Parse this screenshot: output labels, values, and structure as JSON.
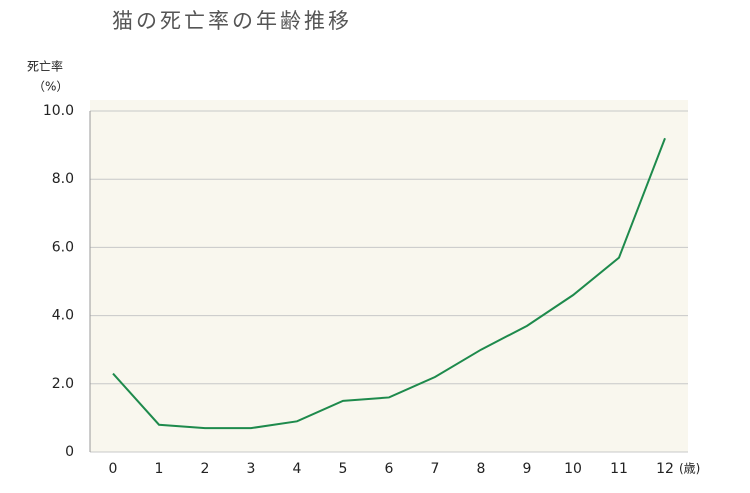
{
  "chart_data": {
    "type": "line",
    "title": "猫の死亡率の年齢推移",
    "ylabel": "死亡率",
    "ylabel_unit": "（%）",
    "xlabel": "(歳)",
    "categories": [
      "0",
      "1",
      "2",
      "3",
      "4",
      "5",
      "6",
      "7",
      "8",
      "9",
      "10",
      "11",
      "12"
    ],
    "values": [
      2.3,
      0.8,
      0.7,
      0.7,
      0.9,
      1.5,
      1.6,
      2.2,
      3.0,
      3.7,
      4.6,
      5.7,
      9.2
    ],
    "color": "#1e8a4c",
    "ylim": [
      0,
      10
    ],
    "yticks": [
      0,
      {
        "value": 2,
        "label": "2.0"
      },
      {
        "value": 4,
        "label": "4.0"
      },
      {
        "value": 6,
        "label": "6.0"
      },
      {
        "value": 8,
        "label": "8.0"
      },
      {
        "value": 10,
        "label": "10.0"
      }
    ],
    "grid": true
  }
}
